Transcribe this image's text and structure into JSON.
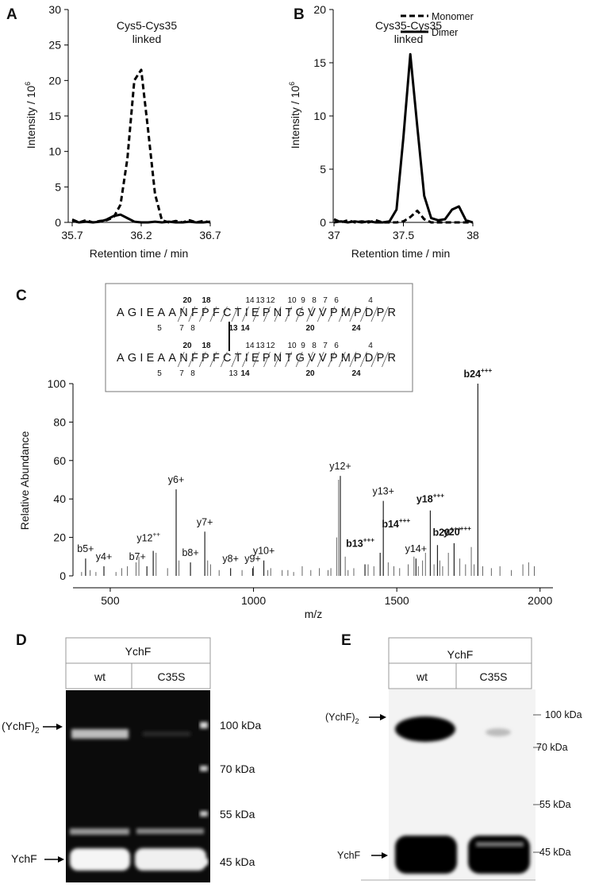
{
  "panel_labels": [
    "A",
    "B",
    "C",
    "D",
    "E"
  ],
  "chart_data": [
    {
      "type": "line",
      "title": [
        "Cys5-Cys35",
        "linked"
      ],
      "xlabel": "Retention time / min",
      "ylabel": {
        "text": "Intensity / 10",
        "sup": "6"
      },
      "x": [
        35.7,
        35.75,
        35.8,
        35.85,
        35.9,
        35.95,
        36,
        36.05,
        36.1,
        36.15,
        36.2,
        36.25,
        36.3,
        36.35,
        36.4,
        36.45,
        36.5,
        36.55,
        36.6,
        36.65,
        36.7
      ],
      "xlim": [
        35.7,
        36.7
      ],
      "xticks": [
        35.7,
        36.2,
        36.7
      ],
      "ylim": [
        0,
        30
      ],
      "yticks": [
        0,
        5,
        10,
        15,
        20,
        25,
        30
      ],
      "series": [
        {
          "color": "#000000",
          "dashed": true,
          "values": [
            0.4,
            0,
            0.3,
            0,
            0.2,
            0.3,
            0.7,
            2.5,
            9,
            20,
            21.5,
            13,
            4,
            0.3,
            0,
            0.2,
            0,
            0.3,
            0,
            0.2,
            0
          ]
        },
        {
          "color": "#000000",
          "dashed": false,
          "values": [
            0.2,
            0,
            0.1,
            0,
            0.1,
            0.4,
            0.9,
            1.1,
            0.6,
            0.1,
            0,
            0,
            0.1,
            0,
            0.1,
            0,
            0,
            0.1,
            0,
            0,
            0.1
          ]
        }
      ]
    },
    {
      "type": "line",
      "title": [
        "Cys35-Cys35",
        "linked"
      ],
      "xlabel": "Retention time / min",
      "ylabel": {
        "text": "Intensity / 10",
        "sup": "6"
      },
      "x": [
        37,
        37.05,
        37.1,
        37.15,
        37.2,
        37.25,
        37.3,
        37.35,
        37.4,
        37.45,
        37.5,
        37.55,
        37.6,
        37.65,
        37.7,
        37.75,
        37.8,
        37.85,
        37.9,
        37.95,
        38
      ],
      "xlim": [
        37,
        38
      ],
      "xticks": [
        37,
        37.5,
        38
      ],
      "ylim": [
        0,
        20
      ],
      "yticks": [
        0,
        5,
        10,
        15,
        20
      ],
      "legend": "top-right",
      "series": [
        {
          "name": "Monomer",
          "color": "#000000",
          "dashed": true,
          "values": [
            0.3,
            0,
            0.2,
            0,
            0.1,
            0,
            0.2,
            0,
            0,
            0,
            0.1,
            0.5,
            1.1,
            0.3,
            0,
            0,
            0,
            0,
            0,
            0,
            0
          ]
        },
        {
          "name": "Dimer",
          "color": "#000000",
          "dashed": false,
          "values": [
            0,
            0.1,
            0,
            0.1,
            0,
            0.1,
            0,
            0,
            0.1,
            1.2,
            8,
            15.8,
            9,
            2.5,
            0.4,
            0.2,
            0.3,
            1.2,
            1.5,
            0.2,
            0
          ]
        }
      ]
    },
    {
      "type": "spectrum",
      "xlabel": "m/z",
      "ylabel": "Relative Abundance",
      "xlim": [
        370,
        2045
      ],
      "xticks": [
        500,
        1000,
        1500,
        2000
      ],
      "ylim": [
        0,
        100
      ],
      "yticks": [
        0,
        20,
        40,
        60,
        80,
        100
      ],
      "series": [
        {
          "color": "#222222",
          "x": [
            414,
            478,
            628,
            650,
            730,
            780,
            830,
            920,
            997,
            1036,
            1303,
            1389,
            1442,
            1453,
            1567,
            1617,
            1642,
            1700,
            1783
          ],
          "values": [
            9,
            5,
            5,
            13,
            45,
            7,
            23,
            4,
            4,
            8,
            52,
            6,
            12,
            39,
            9,
            34,
            16,
            17,
            100
          ],
          "labels": [
            {
              "text": "b5+",
              "bold": false
            },
            {
              "text": "y4+",
              "bold": false
            },
            {
              "text": "b7+",
              "bold": false
            },
            {
              "text": "y12",
              "sup": "++",
              "bold": false
            },
            {
              "text": "y6+",
              "bold": false
            },
            {
              "text": "b8+",
              "bold": false
            },
            {
              "text": "y7+",
              "bold": false
            },
            {
              "text": "y8+",
              "bold": false
            },
            {
              "text": "y9+",
              "bold": false
            },
            {
              "text": "y10+",
              "bold": false
            },
            {
              "text": "y12+",
              "bold": false
            },
            {
              "text": "b13",
              "sup": "+++",
              "bold": true
            },
            {
              "text": "b14",
              "sup": "+++",
              "bold": true
            },
            {
              "text": "y13+",
              "bold": false
            },
            {
              "text": "y14+",
              "bold": false
            },
            {
              "text": "y18",
              "sup": "+++",
              "bold": true
            },
            {
              "text": "b20",
              "sup": "+++",
              "bold": true
            },
            {
              "text": "y20",
              "sup": "+++",
              "bold": true
            },
            {
              "text": "b24",
              "sup": "+++",
              "bold": true
            }
          ]
        },
        {
          "color": "#555555",
          "x": [
            400,
            430,
            450,
            520,
            540,
            560,
            590,
            600,
            660,
            700,
            740,
            840,
            850,
            880,
            960,
            1000,
            1050,
            1060,
            1100,
            1120,
            1140,
            1170,
            1200,
            1230,
            1260,
            1270,
            1290,
            1297,
            1320,
            1330,
            1350,
            1400,
            1420,
            1470,
            1490,
            1510,
            1540,
            1560,
            1575,
            1590,
            1600,
            1630,
            1650,
            1660,
            1680,
            1720,
            1740,
            1760,
            1770,
            1800,
            1830,
            1860,
            1900,
            1940,
            1960,
            1980
          ],
          "values": [
            2,
            3,
            2,
            2,
            4,
            5,
            7,
            10,
            12,
            4,
            8,
            8,
            6,
            3,
            3,
            5,
            3,
            4,
            3,
            3,
            2,
            5,
            3,
            4,
            3,
            4,
            20,
            50,
            10,
            3,
            4,
            6,
            5,
            7,
            5,
            4,
            6,
            10,
            5,
            8,
            12,
            6,
            8,
            5,
            12,
            9,
            6,
            15,
            6,
            5,
            4,
            5,
            3,
            6,
            7,
            5
          ]
        }
      ]
    }
  ],
  "sequence_box": {
    "chains": [
      {
        "sequence": "AGIEAANFPFCTIEPNTGVVPMPDPR",
        "above": [
          {
            "text": "20",
            "bold": true
          },
          {
            "text": "18",
            "bold": true
          },
          {
            "text": "14",
            "bold": false
          },
          {
            "text": "13",
            "bold": false
          },
          {
            "text": "12",
            "bold": false
          },
          {
            "text": "10",
            "bold": false
          },
          {
            "text": "9",
            "bold": false
          },
          {
            "text": "8",
            "bold": false
          },
          {
            "text": "7",
            "bold": false
          },
          {
            "text": "6",
            "bold": false
          },
          {
            "text": "4",
            "bold": false
          }
        ],
        "below": [
          {
            "text": "5",
            "bold": false
          },
          {
            "text": "7",
            "bold": false
          },
          {
            "text": "8",
            "bold": false
          },
          {
            "text": "13",
            "bold": true
          },
          {
            "text": "14",
            "bold": true
          },
          {
            "text": "20",
            "bold": true
          },
          {
            "text": "24",
            "bold": true
          }
        ]
      },
      {
        "sequence": "AGIEAANFPFCTIEPNTGVVPMPDPR",
        "above": [
          {
            "text": "20",
            "bold": true
          },
          {
            "text": "18",
            "bold": true
          },
          {
            "text": "14",
            "bold": false
          },
          {
            "text": "13",
            "bold": false
          },
          {
            "text": "12",
            "bold": false
          },
          {
            "text": "10",
            "bold": false
          },
          {
            "text": "9",
            "bold": false
          },
          {
            "text": "8",
            "bold": false
          },
          {
            "text": "7",
            "bold": false
          },
          {
            "text": "6",
            "bold": false
          },
          {
            "text": "4",
            "bold": false
          }
        ],
        "below": [
          {
            "text": "5",
            "bold": false
          },
          {
            "text": "7",
            "bold": false
          },
          {
            "text": "8",
            "bold": false
          },
          {
            "text": "13",
            "bold": false
          },
          {
            "text": "14",
            "bold": true
          },
          {
            "text": "20",
            "bold": true
          },
          {
            "text": "24",
            "bold": true
          }
        ]
      }
    ]
  },
  "gels": [
    {
      "header": "YchF",
      "lanes": [
        "wt",
        "C35S"
      ],
      "markers": [
        "100 kDa",
        "70 kDa",
        "55 kDa",
        "45 kDa"
      ],
      "bands": [
        {
          "text": "(YchF)",
          "sub": "2"
        },
        {
          "text": "YchF"
        }
      ]
    },
    {
      "header": "YchF",
      "lanes": [
        "wt",
        "C35S"
      ],
      "markers": [
        "100 kDa",
        "70 kDa",
        "55 kDa",
        "45 kDa"
      ],
      "bands": [
        {
          "text": "(YchF)",
          "sub": "2"
        },
        {
          "text": "YchF"
        }
      ]
    }
  ]
}
